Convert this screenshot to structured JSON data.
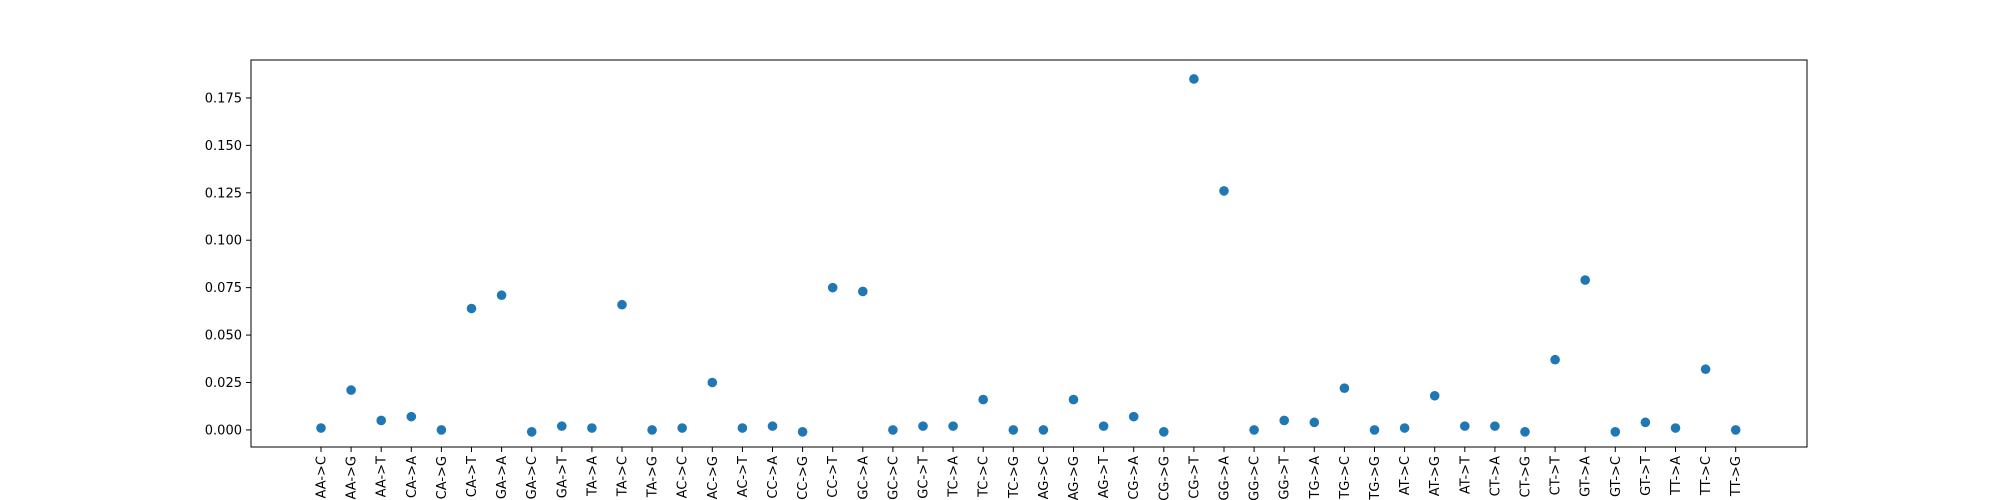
{
  "chart_data": {
    "type": "scatter",
    "title": "",
    "xlabel": "",
    "ylabel": "",
    "grid": false,
    "marker_color": "#1f77b4",
    "ylim": [
      -0.009,
      0.195
    ],
    "yticks": [
      0.0,
      0.025,
      0.05,
      0.075,
      0.1,
      0.125,
      0.15,
      0.175
    ],
    "ytick_labels": [
      "0.000",
      "0.025",
      "0.050",
      "0.075",
      "0.100",
      "0.125",
      "0.150",
      "0.175"
    ],
    "categories": [
      "AA->C",
      "AA->G",
      "AA->T",
      "CA->A",
      "CA->G",
      "CA->T",
      "GA->A",
      "GA->C",
      "GA->T",
      "TA->A",
      "TA->C",
      "TA->G",
      "AC->C",
      "AC->G",
      "AC->T",
      "CC->A",
      "CC->G",
      "CC->T",
      "GC->A",
      "GC->C",
      "GC->T",
      "TC->A",
      "TC->C",
      "TC->G",
      "AG->C",
      "AG->G",
      "AG->T",
      "CG->A",
      "CG->G",
      "CG->T",
      "GG->A",
      "GG->C",
      "GG->T",
      "TG->A",
      "TG->C",
      "TG->G",
      "AT->C",
      "AT->G",
      "AT->T",
      "CT->A",
      "CT->G",
      "CT->T",
      "GT->A",
      "GT->C",
      "GT->T",
      "TT->A",
      "TT->C",
      "TT->G"
    ],
    "values": [
      0.001,
      0.021,
      0.005,
      0.007,
      0.0,
      0.064,
      0.071,
      -0.001,
      0.002,
      0.001,
      0.066,
      0.0,
      0.001,
      0.025,
      0.001,
      0.002,
      -0.001,
      0.075,
      0.073,
      0.0,
      0.002,
      0.002,
      0.016,
      0.0,
      0.0,
      0.016,
      0.002,
      0.007,
      -0.001,
      0.185,
      0.126,
      0.0,
      0.005,
      0.004,
      0.022,
      0.0,
      0.001,
      0.018,
      0.002,
      0.002,
      -0.001,
      0.037,
      0.079,
      -0.001,
      0.004,
      0.001,
      0.032,
      0.0
    ]
  }
}
